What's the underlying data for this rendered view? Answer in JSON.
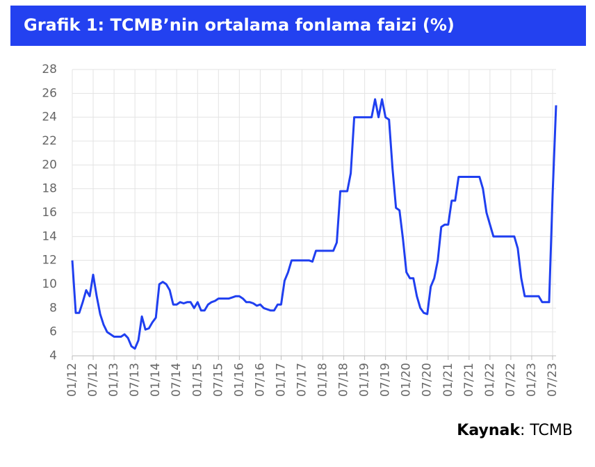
{
  "chart_data": {
    "type": "line",
    "title": "Grafik 1: TCMB’nin ortalama fonlama faizi (%)",
    "source_label": "Kaynak",
    "source": ": TCMB",
    "categories": [
      "01/12",
      null,
      null,
      null,
      null,
      null,
      "07/12",
      null,
      null,
      null,
      null,
      null,
      "01/13",
      null,
      null,
      null,
      null,
      null,
      "07/13",
      null,
      null,
      null,
      null,
      null,
      "01/14",
      null,
      null,
      null,
      null,
      null,
      "07/14",
      null,
      null,
      null,
      null,
      null,
      "01/15",
      null,
      null,
      null,
      null,
      null,
      "07/15",
      null,
      null,
      null,
      null,
      null,
      "01/16",
      null,
      null,
      null,
      null,
      null,
      "07/16",
      null,
      null,
      null,
      null,
      null,
      "01/17",
      null,
      null,
      null,
      null,
      null,
      "07/17",
      null,
      null,
      null,
      null,
      null,
      "01/18",
      null,
      null,
      null,
      null,
      null,
      "07/18",
      null,
      null,
      null,
      null,
      null,
      "01/19",
      null,
      null,
      null,
      null,
      null,
      "07/19",
      null,
      null,
      null,
      null,
      null,
      "01/20",
      null,
      null,
      null,
      null,
      null,
      "07/20",
      null,
      null,
      null,
      null,
      null,
      "01/21",
      null,
      null,
      null,
      null,
      null,
      "07/21",
      null,
      null,
      null,
      null,
      null,
      "01/22",
      null,
      null,
      null,
      null,
      null,
      "07/22",
      null,
      null,
      null,
      null,
      null,
      "01/23",
      null,
      null,
      null,
      null,
      null,
      "07/23",
      null
    ],
    "series": [
      {
        "color": "#1f3ff0",
        "values": [
          12.0,
          7.6,
          7.6,
          8.5,
          9.5,
          9.0,
          10.8,
          9.0,
          7.5,
          6.6,
          6.0,
          5.8,
          5.6,
          5.6,
          5.6,
          5.8,
          5.5,
          4.8,
          4.6,
          5.3,
          7.3,
          6.2,
          6.3,
          6.8,
          7.2,
          10.0,
          10.2,
          10.0,
          9.5,
          8.3,
          8.3,
          8.5,
          8.4,
          8.5,
          8.5,
          8.0,
          8.5,
          7.8,
          7.8,
          8.3,
          8.5,
          8.6,
          8.8,
          8.8,
          8.8,
          8.8,
          8.9,
          9.0,
          9.0,
          8.8,
          8.5,
          8.5,
          8.4,
          8.2,
          8.3,
          8.0,
          7.9,
          7.8,
          7.8,
          8.3,
          8.3,
          10.3,
          11.0,
          12.0,
          12.0,
          12.0,
          12.0,
          12.0,
          12.0,
          11.9,
          12.8,
          12.8,
          12.8,
          12.8,
          12.8,
          12.8,
          13.5,
          17.8,
          17.8,
          17.8,
          19.3,
          24.0,
          24.0,
          24.0,
          24.0,
          24.0,
          24.0,
          25.5,
          24.0,
          25.5,
          24.0,
          23.8,
          19.7,
          16.4,
          16.2,
          13.8,
          11.0,
          10.5,
          10.5,
          9.0,
          8.0,
          7.6,
          7.5,
          9.8,
          10.5,
          12.0,
          14.8,
          15.0,
          15.0,
          17.0,
          17.0,
          19.0,
          19.0,
          19.0,
          19.0,
          19.0,
          19.0,
          19.0,
          18.0,
          16.0,
          15.0,
          14.0,
          14.0,
          14.0,
          14.0,
          14.0,
          14.0,
          14.0,
          13.0,
          10.5,
          9.0,
          9.0,
          9.0,
          9.0,
          9.0,
          8.5,
          8.5,
          8.5,
          17.5,
          25.0
        ]
      }
    ],
    "ylim": [
      4,
      28
    ],
    "yticks": [
      4,
      6,
      8,
      10,
      12,
      14,
      16,
      18,
      20,
      22,
      24,
      26,
      28
    ],
    "grid": true
  }
}
